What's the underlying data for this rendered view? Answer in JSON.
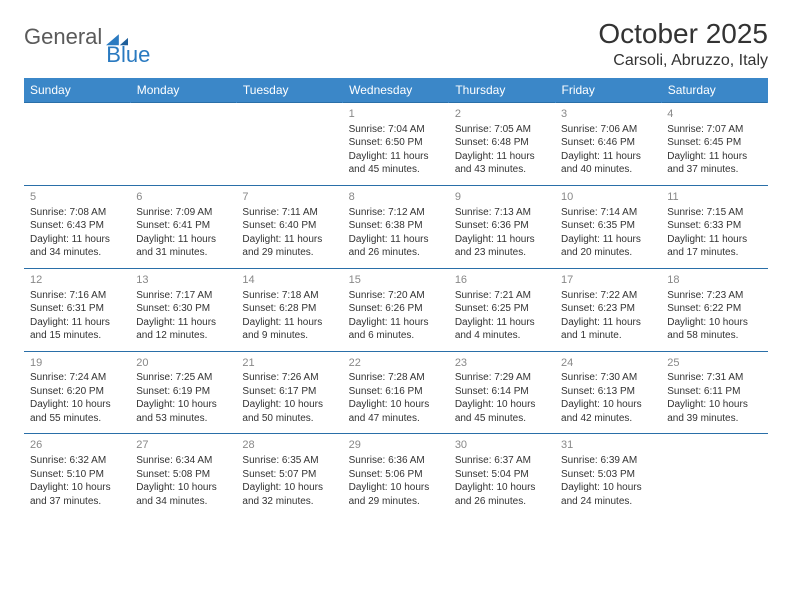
{
  "logo": {
    "textGeneral": "General",
    "textBlue": "Blue"
  },
  "title": "October 2025",
  "location": "Carsoli, Abruzzo, Italy",
  "colors": {
    "header_bg": "#3b87c8",
    "header_text": "#ffffff",
    "border": "#2a6fa8",
    "daynum": "#888888",
    "body_text": "#333333",
    "logo_gray": "#5a5a5a",
    "logo_blue": "#2a7ac0"
  },
  "dayHeaders": [
    "Sunday",
    "Monday",
    "Tuesday",
    "Wednesday",
    "Thursday",
    "Friday",
    "Saturday"
  ],
  "weeks": [
    [
      null,
      null,
      null,
      {
        "n": "1",
        "sr": "7:04 AM",
        "ss": "6:50 PM",
        "dl": "11 hours and 45 minutes."
      },
      {
        "n": "2",
        "sr": "7:05 AM",
        "ss": "6:48 PM",
        "dl": "11 hours and 43 minutes."
      },
      {
        "n": "3",
        "sr": "7:06 AM",
        "ss": "6:46 PM",
        "dl": "11 hours and 40 minutes."
      },
      {
        "n": "4",
        "sr": "7:07 AM",
        "ss": "6:45 PM",
        "dl": "11 hours and 37 minutes."
      }
    ],
    [
      {
        "n": "5",
        "sr": "7:08 AM",
        "ss": "6:43 PM",
        "dl": "11 hours and 34 minutes."
      },
      {
        "n": "6",
        "sr": "7:09 AM",
        "ss": "6:41 PM",
        "dl": "11 hours and 31 minutes."
      },
      {
        "n": "7",
        "sr": "7:11 AM",
        "ss": "6:40 PM",
        "dl": "11 hours and 29 minutes."
      },
      {
        "n": "8",
        "sr": "7:12 AM",
        "ss": "6:38 PM",
        "dl": "11 hours and 26 minutes."
      },
      {
        "n": "9",
        "sr": "7:13 AM",
        "ss": "6:36 PM",
        "dl": "11 hours and 23 minutes."
      },
      {
        "n": "10",
        "sr": "7:14 AM",
        "ss": "6:35 PM",
        "dl": "11 hours and 20 minutes."
      },
      {
        "n": "11",
        "sr": "7:15 AM",
        "ss": "6:33 PM",
        "dl": "11 hours and 17 minutes."
      }
    ],
    [
      {
        "n": "12",
        "sr": "7:16 AM",
        "ss": "6:31 PM",
        "dl": "11 hours and 15 minutes."
      },
      {
        "n": "13",
        "sr": "7:17 AM",
        "ss": "6:30 PM",
        "dl": "11 hours and 12 minutes."
      },
      {
        "n": "14",
        "sr": "7:18 AM",
        "ss": "6:28 PM",
        "dl": "11 hours and 9 minutes."
      },
      {
        "n": "15",
        "sr": "7:20 AM",
        "ss": "6:26 PM",
        "dl": "11 hours and 6 minutes."
      },
      {
        "n": "16",
        "sr": "7:21 AM",
        "ss": "6:25 PM",
        "dl": "11 hours and 4 minutes."
      },
      {
        "n": "17",
        "sr": "7:22 AM",
        "ss": "6:23 PM",
        "dl": "11 hours and 1 minute."
      },
      {
        "n": "18",
        "sr": "7:23 AM",
        "ss": "6:22 PM",
        "dl": "10 hours and 58 minutes."
      }
    ],
    [
      {
        "n": "19",
        "sr": "7:24 AM",
        "ss": "6:20 PM",
        "dl": "10 hours and 55 minutes."
      },
      {
        "n": "20",
        "sr": "7:25 AM",
        "ss": "6:19 PM",
        "dl": "10 hours and 53 minutes."
      },
      {
        "n": "21",
        "sr": "7:26 AM",
        "ss": "6:17 PM",
        "dl": "10 hours and 50 minutes."
      },
      {
        "n": "22",
        "sr": "7:28 AM",
        "ss": "6:16 PM",
        "dl": "10 hours and 47 minutes."
      },
      {
        "n": "23",
        "sr": "7:29 AM",
        "ss": "6:14 PM",
        "dl": "10 hours and 45 minutes."
      },
      {
        "n": "24",
        "sr": "7:30 AM",
        "ss": "6:13 PM",
        "dl": "10 hours and 42 minutes."
      },
      {
        "n": "25",
        "sr": "7:31 AM",
        "ss": "6:11 PM",
        "dl": "10 hours and 39 minutes."
      }
    ],
    [
      {
        "n": "26",
        "sr": "6:32 AM",
        "ss": "5:10 PM",
        "dl": "10 hours and 37 minutes."
      },
      {
        "n": "27",
        "sr": "6:34 AM",
        "ss": "5:08 PM",
        "dl": "10 hours and 34 minutes."
      },
      {
        "n": "28",
        "sr": "6:35 AM",
        "ss": "5:07 PM",
        "dl": "10 hours and 32 minutes."
      },
      {
        "n": "29",
        "sr": "6:36 AM",
        "ss": "5:06 PM",
        "dl": "10 hours and 29 minutes."
      },
      {
        "n": "30",
        "sr": "6:37 AM",
        "ss": "5:04 PM",
        "dl": "10 hours and 26 minutes."
      },
      {
        "n": "31",
        "sr": "6:39 AM",
        "ss": "5:03 PM",
        "dl": "10 hours and 24 minutes."
      },
      null
    ]
  ],
  "labels": {
    "sunrise": "Sunrise:",
    "sunset": "Sunset:",
    "daylight": "Daylight:"
  }
}
